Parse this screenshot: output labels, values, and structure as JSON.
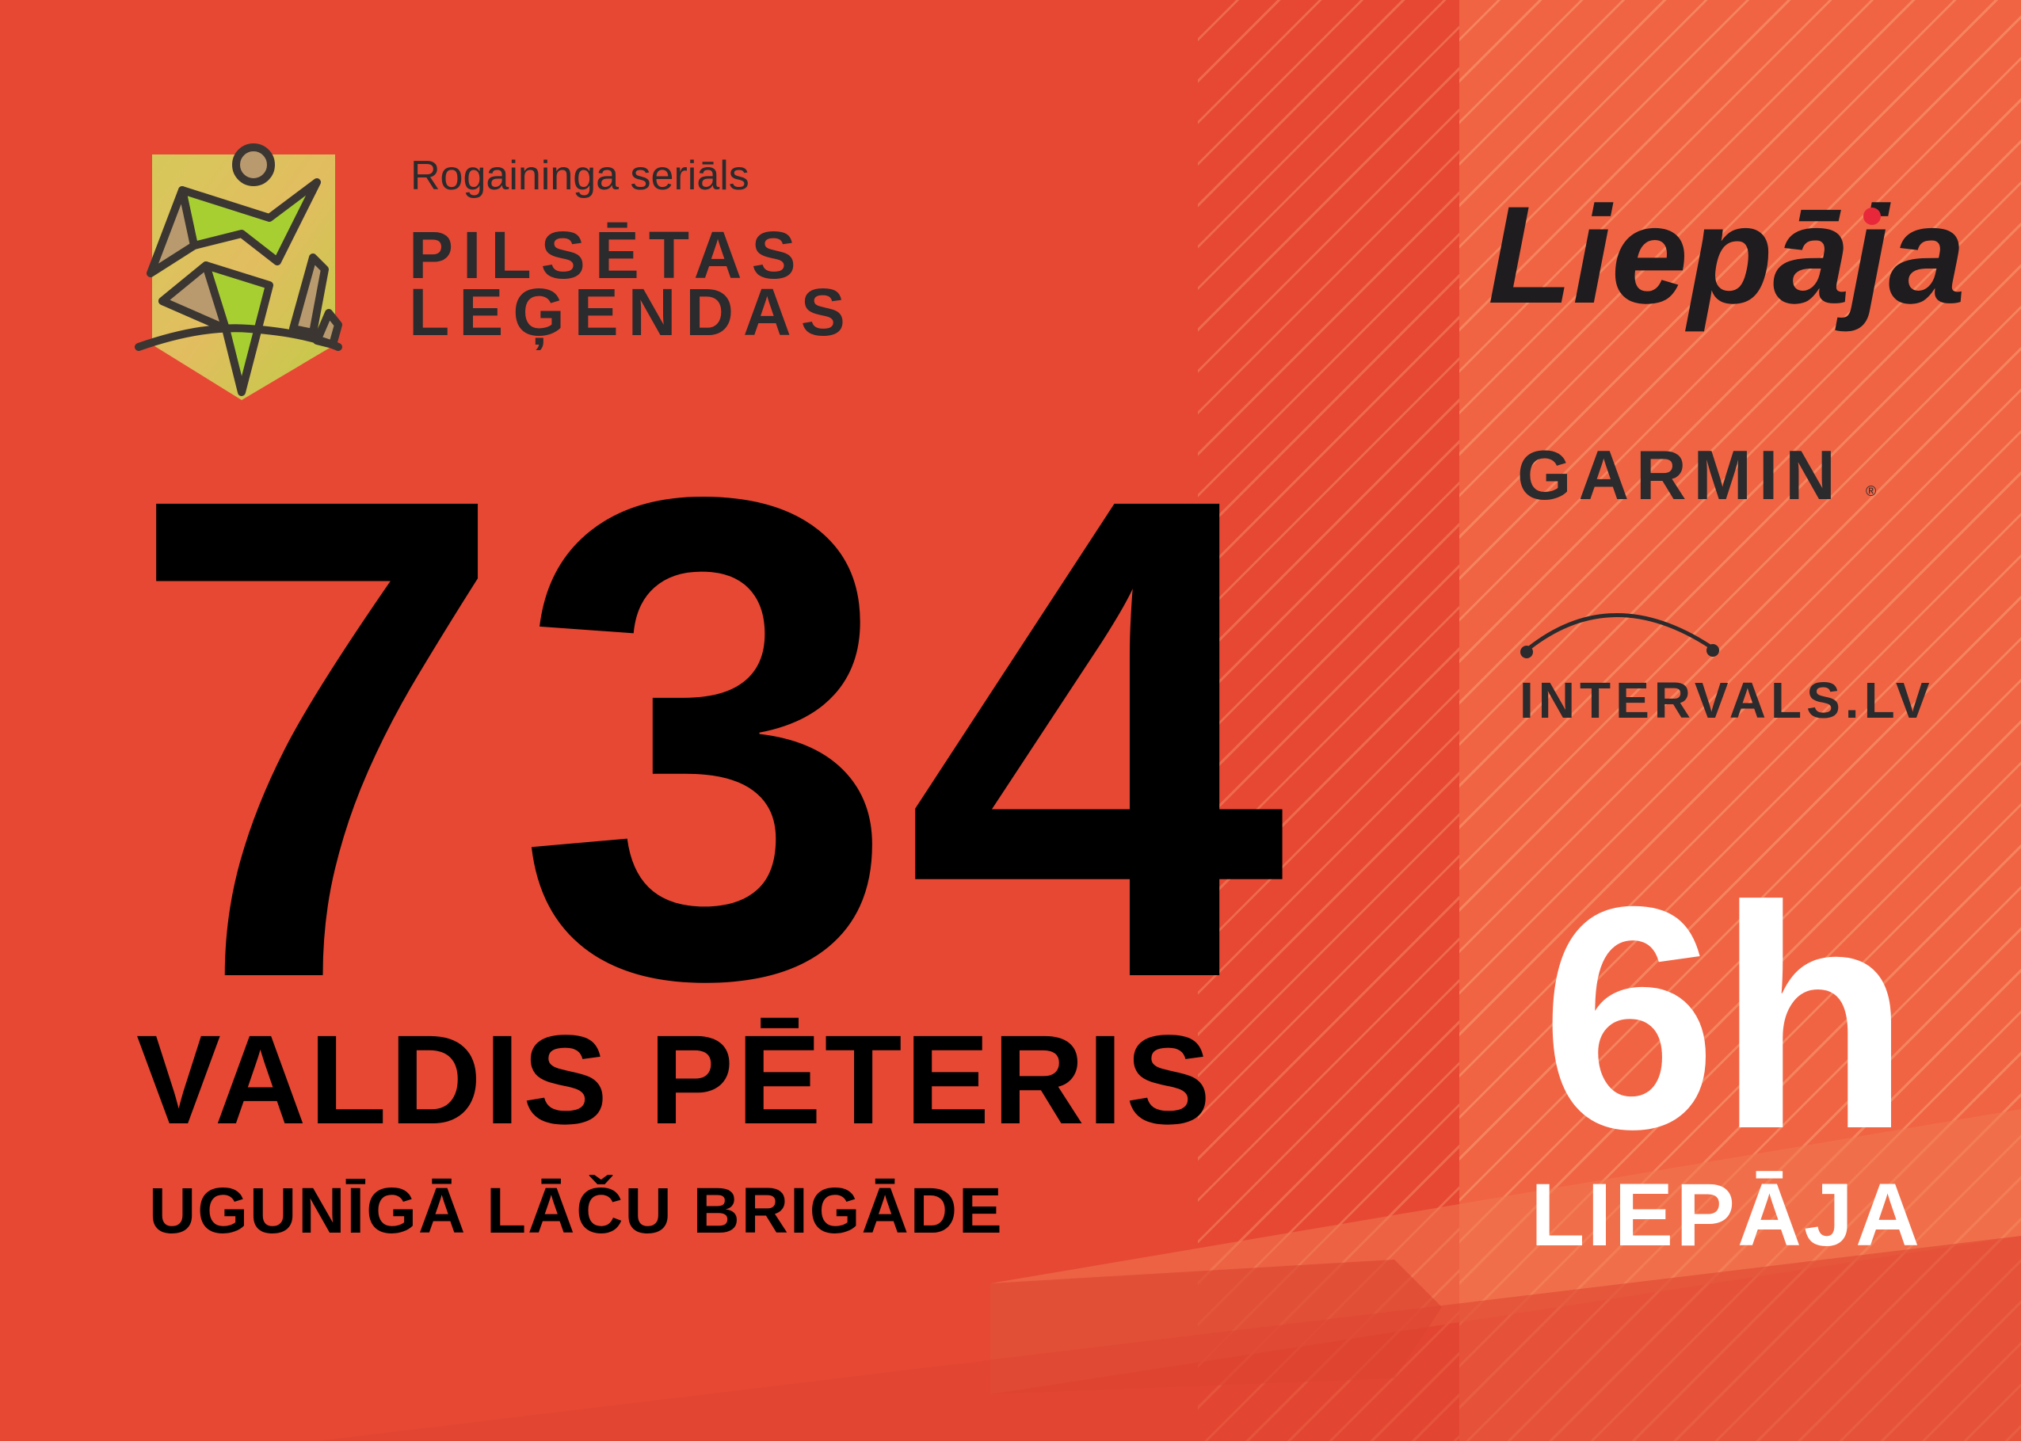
{
  "colors": {
    "background": "#e64834",
    "right_panel": "#f06444",
    "text_dark": "#2b2a2c",
    "number": "#000000",
    "white_text": "#ffffff",
    "logo_green": "#a8cf32",
    "logo_tan": "#b99a6e",
    "liepaja_dot": "#e8283a"
  },
  "event_logo": {
    "subtitle": "Rogaininga seriāls",
    "title_line1": "PILSĒTAS",
    "title_line2": "LEĢENDAS"
  },
  "bib": {
    "number": "734",
    "participant_name": "VALDIS PĒTERIS",
    "team_name": "UGUNĪGĀ LĀČU BRIGĀDE"
  },
  "sponsors": {
    "liepaja": "Liepāja",
    "garmin": "GARMIN",
    "garmin_mark": "®",
    "intervals": "INTERVALS.LV"
  },
  "race": {
    "duration": "6h",
    "location": "LIEPĀJA"
  }
}
